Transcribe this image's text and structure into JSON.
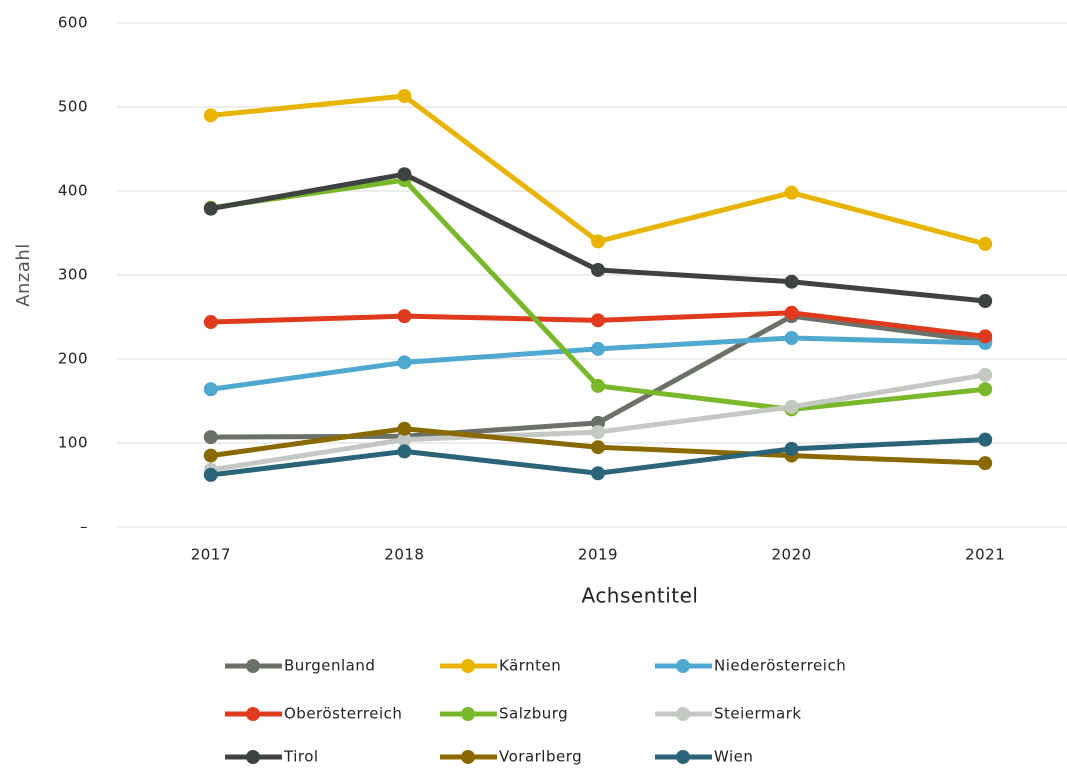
{
  "chart_data": {
    "type": "line",
    "categories": [
      "2017",
      "2018",
      "2019",
      "2020",
      "2021"
    ],
    "xlabel": "Achsentitel",
    "ylabel": "Anzahl",
    "ylim": [
      0,
      600
    ],
    "yticks": [
      {
        "value": 0,
        "label": "–"
      },
      100,
      200,
      300,
      400,
      500,
      600
    ],
    "grid": true,
    "legend": "bottom",
    "series": [
      {
        "name": "Burgenland",
        "color": "#6b7168",
        "values": [
          107,
          108,
          124,
          251,
          221
        ]
      },
      {
        "name": "Kärnten",
        "color": "#e8b400",
        "values": [
          490,
          513,
          340,
          398,
          337
        ]
      },
      {
        "name": "Niederösterreich",
        "color": "#4fa8d0",
        "values": [
          164,
          196,
          212,
          225,
          219
        ]
      },
      {
        "name": "Oberösterreich",
        "color": "#e03a1e",
        "values": [
          244,
          251,
          246,
          255,
          227
        ]
      },
      {
        "name": "Salzburg",
        "color": "#78b82a",
        "values": [
          380,
          413,
          168,
          140,
          164
        ]
      },
      {
        "name": "Steiermark",
        "color": "#c4c8c2",
        "values": [
          68,
          104,
          113,
          143,
          181
        ]
      },
      {
        "name": "Tirol",
        "color": "#3e4240",
        "values": [
          379,
          420,
          306,
          292,
          269
        ]
      },
      {
        "name": "Vorarlberg",
        "color": "#8a6a00",
        "values": [
          85,
          117,
          95,
          85,
          76
        ]
      },
      {
        "name": "Wien",
        "color": "#2a6478",
        "values": [
          62,
          90,
          64,
          93,
          104
        ]
      }
    ]
  }
}
